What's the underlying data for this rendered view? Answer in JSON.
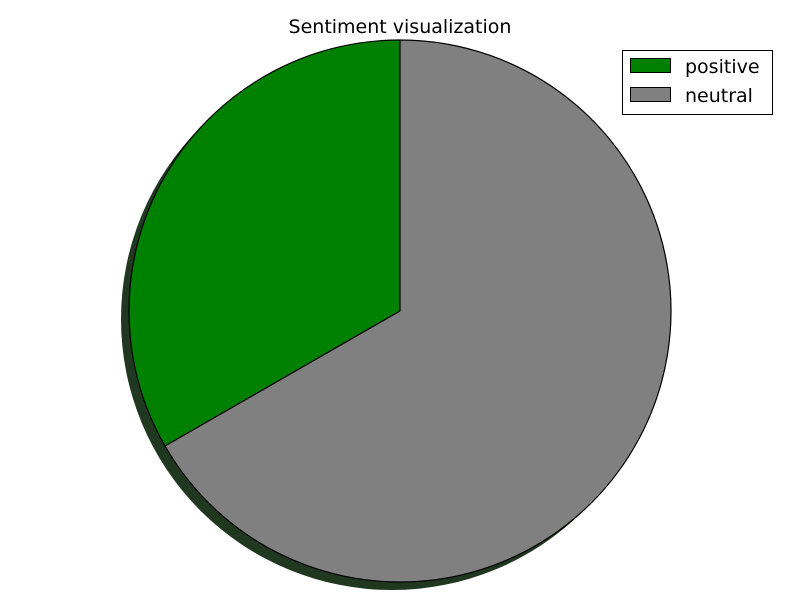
{
  "chart_data": {
    "type": "pie",
    "title": "Sentiment visualization",
    "start_angle_deg": 90,
    "direction": "counterclockwise",
    "shadow": true,
    "legend_position": "top-right",
    "slices": [
      {
        "label": "positive",
        "value": 33.3,
        "color": "#008000"
      },
      {
        "label": "neutral",
        "value": 66.7,
        "color": "#808080"
      }
    ]
  }
}
